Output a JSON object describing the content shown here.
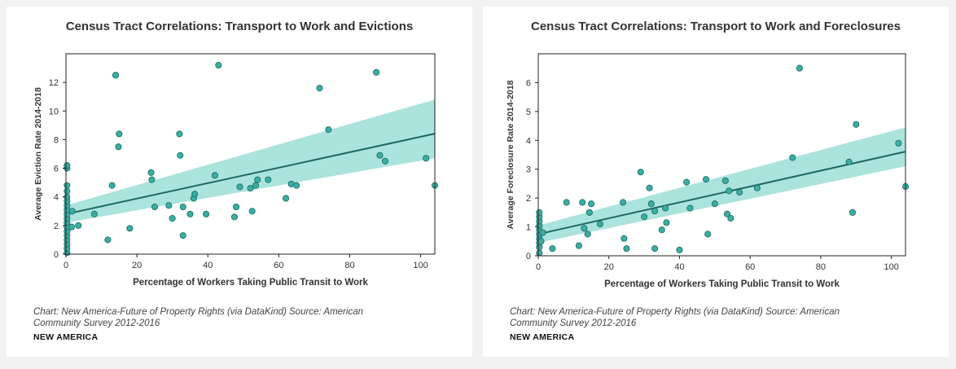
{
  "colors": {
    "point_fill": "#3aafa4",
    "point_stroke": "#1d6f67",
    "band": "#8fd9d2",
    "line": "#1f6a63",
    "background": "#f2f2f2"
  },
  "chart_data": [
    {
      "type": "scatter",
      "title": "Census Tract Correlations: Transport to Work and Evictions",
      "xlabel": "Percentage of Workers Taking Public Transit to Work",
      "ylabel": "Average Eviction Rate 2014-2018",
      "xlim": [
        0,
        104
      ],
      "ylim": [
        0,
        14
      ],
      "xticks": [
        0,
        20,
        40,
        60,
        80,
        100
      ],
      "yticks": [
        0,
        2,
        4,
        6,
        8,
        10,
        12
      ],
      "grid": false,
      "regression": {
        "intercept": 2.8,
        "slope": 0.054,
        "band_low_at_xmax": 6.7,
        "band_high_at_xmax": 10.8,
        "band_width_at_x0": 0.6
      },
      "caption": "Chart: New America-Future of Property Rights (via DataKind) Source: American Community Survey 2012-2016",
      "brand": "NEW AMERICA",
      "points": [
        [
          0.3,
          0.1
        ],
        [
          0.3,
          0.4
        ],
        [
          0.3,
          0.7
        ],
        [
          0.3,
          1.0
        ],
        [
          0.3,
          1.3
        ],
        [
          0.3,
          1.6
        ],
        [
          0.3,
          1.9
        ],
        [
          0.3,
          2.2
        ],
        [
          0.3,
          2.5
        ],
        [
          0.3,
          2.8
        ],
        [
          0.3,
          3.1
        ],
        [
          0.3,
          3.4
        ],
        [
          0.3,
          3.7
        ],
        [
          0.3,
          4.0
        ],
        [
          0.3,
          4.4
        ],
        [
          0.3,
          4.8
        ],
        [
          0.3,
          6.0
        ],
        [
          0.3,
          6.2
        ],
        [
          1.6,
          1.9
        ],
        [
          1.8,
          3.0
        ],
        [
          3.5,
          2.0
        ],
        [
          8,
          2.8
        ],
        [
          11.8,
          1.0
        ],
        [
          13,
          4.8
        ],
        [
          14,
          12.5
        ],
        [
          14.8,
          7.5
        ],
        [
          15,
          8.4
        ],
        [
          18,
          1.8
        ],
        [
          24,
          5.7
        ],
        [
          24.2,
          5.2
        ],
        [
          25,
          3.3
        ],
        [
          29,
          3.4
        ],
        [
          30,
          2.5
        ],
        [
          32,
          8.4
        ],
        [
          32.2,
          6.9
        ],
        [
          33,
          3.3
        ],
        [
          33,
          1.3
        ],
        [
          35,
          2.8
        ],
        [
          36,
          3.9
        ],
        [
          36.3,
          4.2
        ],
        [
          39.5,
          2.8
        ],
        [
          42,
          5.5
        ],
        [
          43,
          13.2
        ],
        [
          47.5,
          2.6
        ],
        [
          48,
          3.3
        ],
        [
          49,
          4.7
        ],
        [
          52,
          4.6
        ],
        [
          52.5,
          3.0
        ],
        [
          53.5,
          4.8
        ],
        [
          54,
          5.2
        ],
        [
          57,
          5.2
        ],
        [
          62,
          3.9
        ],
        [
          63.5,
          4.9
        ],
        [
          65,
          4.8
        ],
        [
          71.5,
          11.6
        ],
        [
          74,
          8.7
        ],
        [
          87.5,
          12.7
        ],
        [
          88.5,
          6.9
        ],
        [
          90,
          6.5
        ],
        [
          101.5,
          6.7
        ],
        [
          104,
          4.8
        ]
      ]
    },
    {
      "type": "scatter",
      "title": "Census Tract Correlations: Transport to Work and Foreclosures",
      "xlabel": "Percentage of Workers Taking Public Transit to Work",
      "ylabel": "Average Foreclosure Rate 2014-2018",
      "xlim": [
        0,
        104
      ],
      "ylim": [
        0,
        7
      ],
      "xticks": [
        0,
        20,
        40,
        60,
        80,
        100
      ],
      "yticks": [
        0,
        1,
        2,
        3,
        4,
        5,
        6
      ],
      "grid": false,
      "regression": {
        "intercept": 0.75,
        "slope": 0.0275,
        "band_low_at_xmax": 3.1,
        "band_high_at_xmax": 4.45,
        "band_width_at_x0": 0.3
      },
      "caption": "Chart: New America-Future of Property Rights (via DataKind) Source: American Community Survey 2012-2016",
      "brand": "NEW AMERICA",
      "points": [
        [
          0.3,
          0.1
        ],
        [
          0.3,
          0.3
        ],
        [
          0.3,
          0.45
        ],
        [
          0.3,
          0.6
        ],
        [
          0.3,
          0.75
        ],
        [
          0.3,
          0.9
        ],
        [
          0.3,
          1.05
        ],
        [
          0.3,
          1.2
        ],
        [
          0.3,
          1.35
        ],
        [
          0.3,
          1.5
        ],
        [
          0.8,
          0.5
        ],
        [
          1.3,
          0.8
        ],
        [
          4,
          0.25
        ],
        [
          8,
          1.85
        ],
        [
          11.5,
          0.35
        ],
        [
          12.5,
          1.85
        ],
        [
          13,
          0.95
        ],
        [
          14,
          0.75
        ],
        [
          14.5,
          1.5
        ],
        [
          15,
          1.8
        ],
        [
          17.5,
          1.1
        ],
        [
          24,
          1.85
        ],
        [
          24.3,
          0.6
        ],
        [
          25,
          0.25
        ],
        [
          29,
          2.9
        ],
        [
          30,
          1.35
        ],
        [
          31.5,
          2.35
        ],
        [
          32,
          1.8
        ],
        [
          33,
          1.55
        ],
        [
          33,
          0.25
        ],
        [
          35,
          0.9
        ],
        [
          36,
          1.65
        ],
        [
          36.3,
          1.15
        ],
        [
          40,
          0.2
        ],
        [
          42,
          2.55
        ],
        [
          43,
          1.65
        ],
        [
          47.5,
          2.65
        ],
        [
          48,
          0.75
        ],
        [
          50,
          1.8
        ],
        [
          53,
          2.6
        ],
        [
          53.5,
          1.45
        ],
        [
          54,
          2.25
        ],
        [
          54.5,
          1.3
        ],
        [
          57,
          2.2
        ],
        [
          62,
          2.35
        ],
        [
          72,
          3.4
        ],
        [
          74,
          6.5
        ],
        [
          88,
          3.25
        ],
        [
          89,
          1.5
        ],
        [
          90,
          4.55
        ],
        [
          102,
          3.9
        ],
        [
          104,
          2.4
        ]
      ]
    }
  ]
}
